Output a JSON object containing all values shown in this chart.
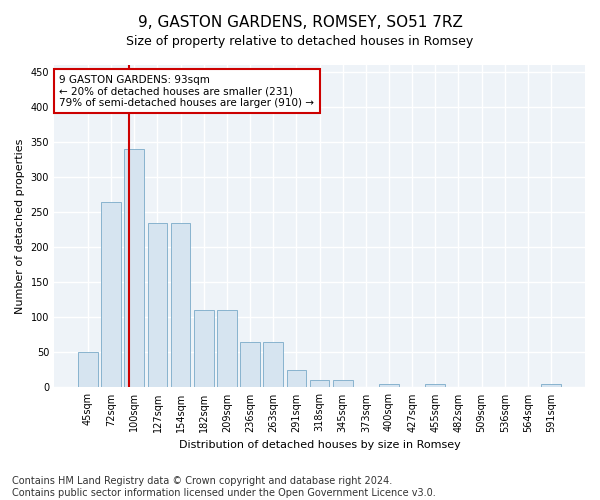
{
  "title": "9, GASTON GARDENS, ROMSEY, SO51 7RZ",
  "subtitle": "Size of property relative to detached houses in Romsey",
  "xlabel": "Distribution of detached houses by size in Romsey",
  "ylabel": "Number of detached properties",
  "categories": [
    "45sqm",
    "72sqm",
    "100sqm",
    "127sqm",
    "154sqm",
    "182sqm",
    "209sqm",
    "236sqm",
    "263sqm",
    "291sqm",
    "318sqm",
    "345sqm",
    "373sqm",
    "400sqm",
    "427sqm",
    "455sqm",
    "482sqm",
    "509sqm",
    "536sqm",
    "564sqm",
    "591sqm"
  ],
  "bar_heights": [
    50,
    265,
    340,
    235,
    235,
    110,
    110,
    65,
    65,
    25,
    10,
    10,
    0,
    5,
    0,
    5,
    0,
    0,
    0,
    0,
    5
  ],
  "bar_color": "#d6e4f0",
  "bar_edge_color": "#7aaac8",
  "vline_x": 1.75,
  "annotation_text": "9 GASTON GARDENS: 93sqm\n← 20% of detached houses are smaller (231)\n79% of semi-detached houses are larger (910) →",
  "annotation_box_color": "#ffffff",
  "annotation_box_edge": "#cc0000",
  "vline_color": "#cc0000",
  "ylim": [
    0,
    460
  ],
  "yticks": [
    0,
    50,
    100,
    150,
    200,
    250,
    300,
    350,
    400,
    450
  ],
  "footer": "Contains HM Land Registry data © Crown copyright and database right 2024.\nContains public sector information licensed under the Open Government Licence v3.0.",
  "bg_color": "#ffffff",
  "plot_bg_color": "#eef3f8",
  "grid_color": "#ffffff",
  "title_fontsize": 11,
  "axis_label_fontsize": 8,
  "tick_fontsize": 7,
  "footer_fontsize": 7
}
